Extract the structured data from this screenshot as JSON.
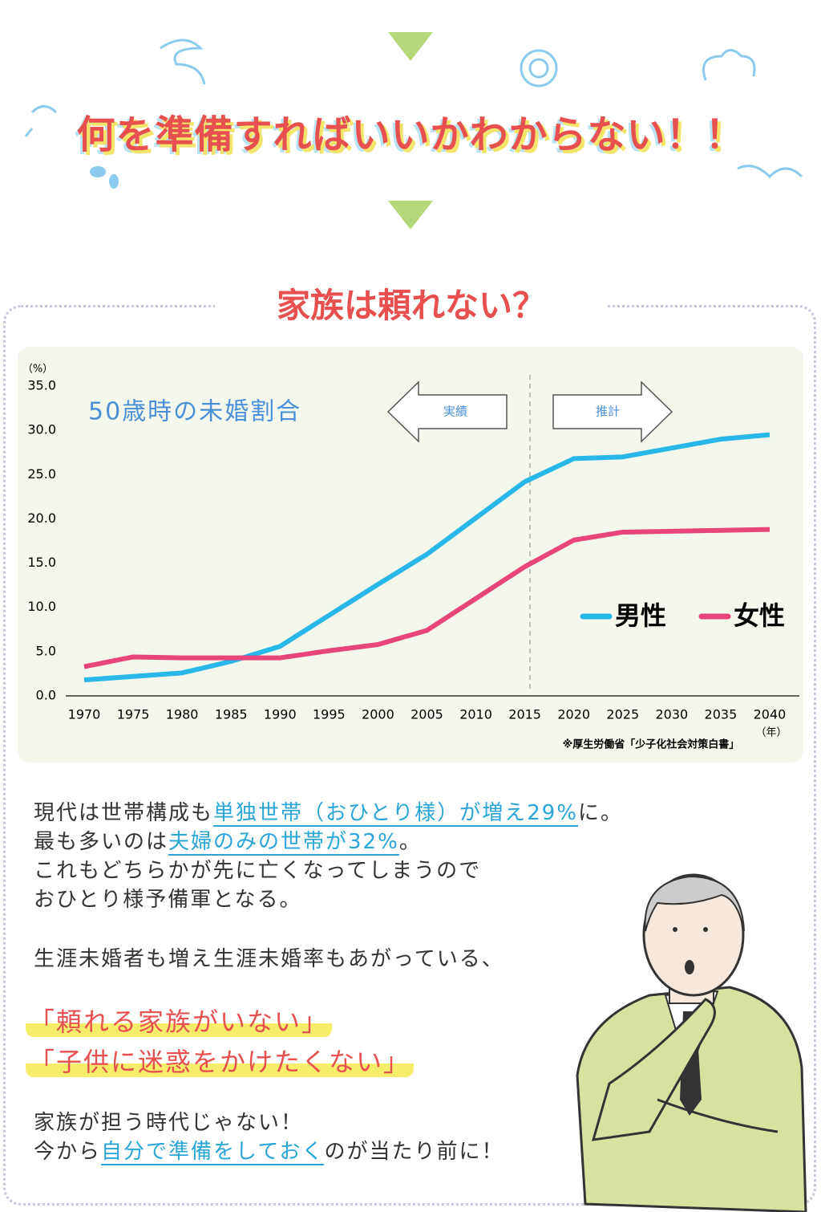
{
  "headline": "何を準備すればいいかわからない！！",
  "section_title": "家族は頼れない？",
  "chart_data": {
    "type": "line",
    "title": "50歳時の未婚割合",
    "y_unit": "（%）",
    "x_unit": "（年）",
    "actual_label": "実績",
    "forecast_label": "推計",
    "source": "※厚生労働省「少子化社会対策白書」",
    "categories": [
      "1970",
      "1975",
      "1980",
      "1985",
      "1990",
      "1995",
      "2000",
      "2005",
      "2010",
      "2015",
      "2020",
      "2025",
      "2030",
      "2035",
      "2040"
    ],
    "series": [
      {
        "name": "男性",
        "color": "#29b6e8",
        "values": [
          1.8,
          2.2,
          2.6,
          3.9,
          5.6,
          9.1,
          12.6,
          16.0,
          20.1,
          24.2,
          26.8,
          27.0,
          28.0,
          29.0,
          29.5
        ]
      },
      {
        "name": "女性",
        "color": "#e8457a",
        "values": [
          3.3,
          4.4,
          4.3,
          4.3,
          4.3,
          5.1,
          5.8,
          7.4,
          11.0,
          14.6,
          17.6,
          18.5,
          18.6,
          18.7,
          18.8
        ]
      }
    ],
    "ylim": [
      0,
      35
    ],
    "yticks": [
      {
        "value": 0,
        "label": "0.0"
      },
      {
        "value": 5,
        "label": "5.0"
      },
      {
        "value": 10,
        "label": "10.0"
      },
      {
        "value": 15,
        "label": "15.0"
      },
      {
        "value": 20,
        "label": "20.0"
      },
      {
        "value": 25,
        "label": "25.0"
      },
      {
        "value": 30,
        "label": "30.0"
      },
      {
        "value": 35,
        "label": "35.0"
      }
    ],
    "grid": false
  },
  "body": [
    [
      "現代は世帯構成も",
      "単独世帯（おひとり様）が増え29%",
      "に。"
    ],
    [
      "最も多いのは",
      "夫婦のみの世帯が32%",
      "。"
    ],
    "これもどちらかが先に亡くなってしまうので",
    "おひとり様予備軍となる。",
    "生涯未婚者も増え生涯未婚率もあがっている、"
  ],
  "highlights": [
    "「頼れる家族がいない」",
    "「子供に迷惑をかけたくない」"
  ],
  "closing": [
    "家族が担う時代じゃない！",
    [
      "今から",
      "自分で準備をしておく",
      "のが当たり前に！"
    ]
  ]
}
